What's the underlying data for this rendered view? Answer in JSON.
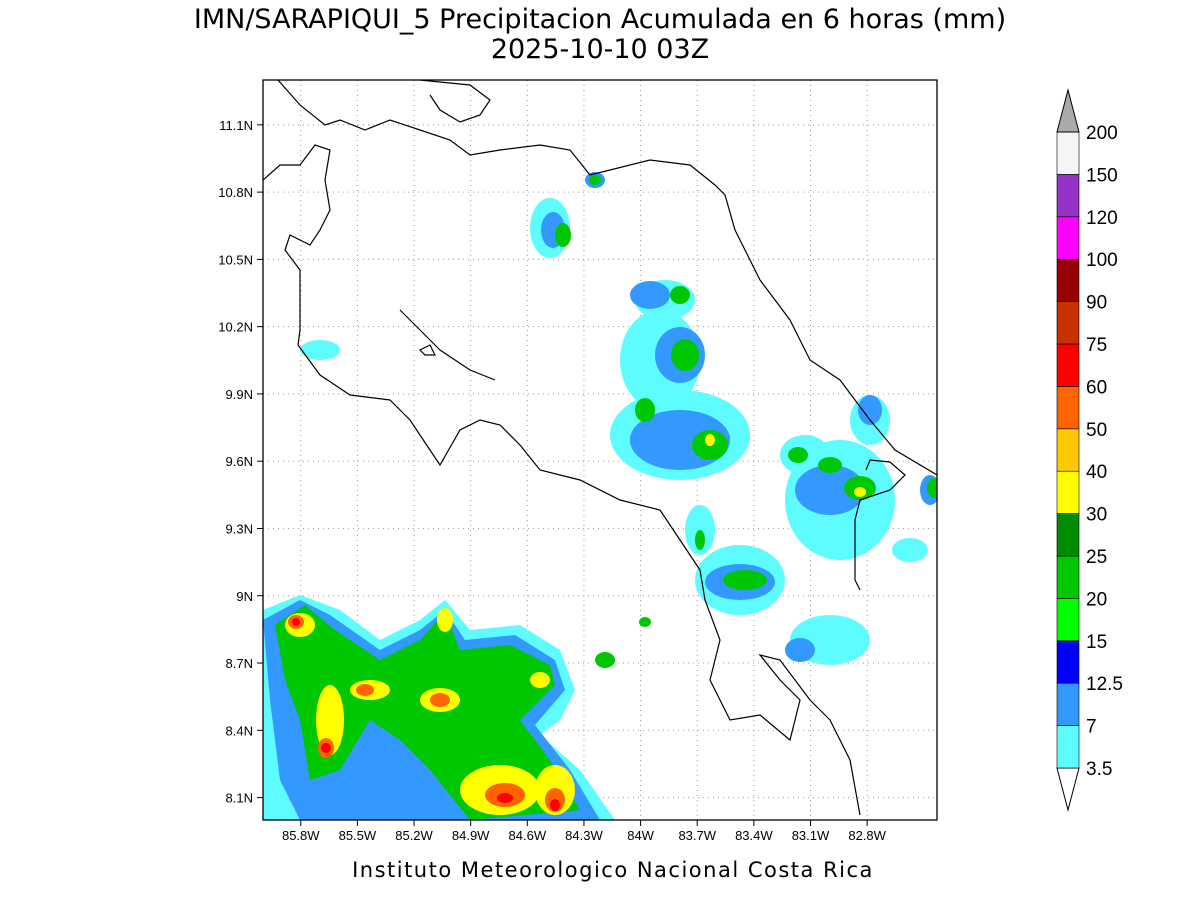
{
  "title": "IMN/SARAPIQUI_5 Precipitacion Acumulada en 6 horas (mm)",
  "subtitle": "2025-10-10 03Z",
  "map": {
    "lonlim": [
      -86.0,
      -82.43
    ],
    "latlim": [
      8.0,
      11.3
    ],
    "lat_ticks": [
      {
        "value": 8.1,
        "label": "8.1N"
      },
      {
        "value": 8.4,
        "label": "8.4N"
      },
      {
        "value": 8.7,
        "label": "8.7N"
      },
      {
        "value": 9,
        "label": "9N"
      },
      {
        "value": 9.3,
        "label": "9.3N"
      },
      {
        "value": 9.6,
        "label": "9.6N"
      },
      {
        "value": 9.9,
        "label": "9.9N"
      },
      {
        "value": 10.2,
        "label": "10.2N"
      },
      {
        "value": 10.5,
        "label": "10.5N"
      },
      {
        "value": 10.8,
        "label": "10.8N"
      },
      {
        "value": 11.1,
        "label": "11.1N"
      }
    ],
    "lon_ticks": [
      {
        "value": -85.8,
        "label": "85.8W"
      },
      {
        "value": -85.5,
        "label": "85.5W"
      },
      {
        "value": -85.2,
        "label": "85.2W"
      },
      {
        "value": -84.9,
        "label": "84.9W"
      },
      {
        "value": -84.6,
        "label": "84.6W"
      },
      {
        "value": -84.3,
        "label": "84.3W"
      },
      {
        "value": -84,
        "label": "84W"
      },
      {
        "value": -83.7,
        "label": "83.7W"
      },
      {
        "value": -83.4,
        "label": "83.4W"
      },
      {
        "value": -83.1,
        "label": "83.1W"
      },
      {
        "value": -82.8,
        "label": "82.8W"
      }
    ],
    "grid": true
  },
  "colorbar": {
    "levels": [
      3.5,
      7,
      12.5,
      15,
      20,
      25,
      30,
      40,
      50,
      60,
      75,
      90,
      100,
      120,
      150,
      200
    ],
    "colors": [
      "#ffffff",
      "#5ffcff",
      "#3399ff",
      "#0000ff",
      "#00ff00",
      "#00c800",
      "#008c00",
      "#ffff00",
      "#ffc800",
      "#ff6400",
      "#ff0000",
      "#c83200",
      "#960000",
      "#ff00ff",
      "#9632c8",
      "#f5f5f5",
      "#aaaaaa"
    ]
  },
  "footer": "Instituto Meteorologico Nacional Costa Rica"
}
